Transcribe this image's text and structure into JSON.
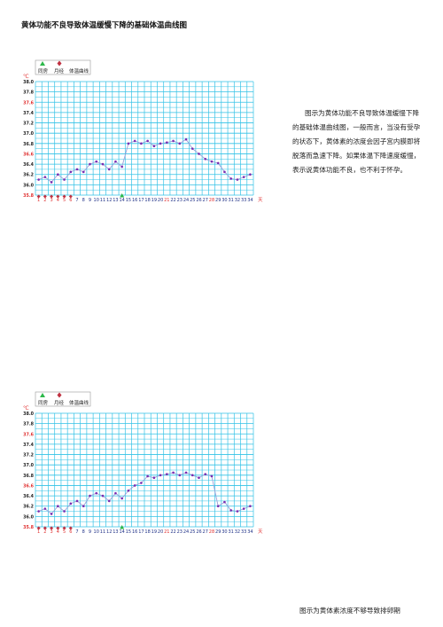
{
  "title": "黄体功能不良导致体温缓慢下降的基础体温曲线图",
  "description": "图示为黄体功能不良导致体温缓慢下降的基础体温曲线图，一般而言，当没有受孕的状态下，黄体素的浓度会因子宫内膜即将脱落而急速下降。如果体温下降速度缓慢，表示说黄体功能不良，也不利于怀孕。",
  "caption": "图示为黄体素浓度不够导致排卵期",
  "colors": {
    "grid": "#33c2e6",
    "line": "#9a9fd9",
    "point": "#7a2bb0",
    "high_temp_label": "#e03030",
    "menses_marker": "#c03040",
    "ovulation_marker": "#2db84a",
    "period_day_label": "#e03030"
  },
  "legend": {
    "ovulation_label": "同房",
    "menses_label": "月经",
    "curve_label": "体温曲线",
    "ovulation_icon": "green-triangle-icon",
    "menses_icon": "red-diamond-icon"
  },
  "chart_data": [
    {
      "type": "line",
      "title": "",
      "unit_label": "℃",
      "x_unit_label": "天",
      "xlabel": "",
      "ylabel": "℃",
      "ylim": [
        35.8,
        38.0
      ],
      "grid": true,
      "legend_position": "top-left",
      "x": [
        1,
        2,
        3,
        4,
        5,
        6,
        7,
        8,
        9,
        10,
        11,
        12,
        13,
        14,
        15,
        16,
        17,
        18,
        19,
        20,
        21,
        22,
        23,
        24,
        25,
        26,
        27,
        28,
        29,
        30,
        31,
        32,
        33,
        34
      ],
      "y_ticks": [
        "38.0",
        "37.8",
        "37.6",
        "37.4",
        "37.2",
        "37.0",
        "36.8",
        "36.6",
        "36.4",
        "36.2",
        "36.0",
        "35.8"
      ],
      "series": [
        {
          "values": [
            36.1,
            36.15,
            36.05,
            36.2,
            36.1,
            36.25,
            36.3,
            36.25,
            36.4,
            36.45,
            36.4,
            36.3,
            36.45,
            36.35,
            36.8,
            36.85,
            36.8,
            36.85,
            36.75,
            36.8,
            36.82,
            36.85,
            36.8,
            36.88,
            36.7,
            36.6,
            36.5,
            36.45,
            36.42,
            36.25,
            36.12,
            36.1,
            36.15,
            36.2
          ]
        }
      ],
      "menses_days": [
        1,
        2,
        3,
        4,
        5,
        6
      ],
      "ovulation_days": [
        14
      ],
      "highlight_days": [
        28
      ]
    },
    {
      "type": "line",
      "title": "",
      "unit_label": "℃",
      "x_unit_label": "天",
      "xlabel": "",
      "ylabel": "℃",
      "ylim": [
        35.8,
        38.0
      ],
      "grid": true,
      "legend_position": "top-left",
      "x": [
        1,
        2,
        3,
        4,
        5,
        6,
        7,
        8,
        9,
        10,
        11,
        12,
        13,
        14,
        15,
        16,
        17,
        18,
        19,
        20,
        21,
        22,
        23,
        24,
        25,
        26,
        27,
        28,
        29,
        30,
        31,
        32,
        33,
        34
      ],
      "y_ticks": [
        "38.0",
        "37.8",
        "37.6",
        "37.4",
        "37.2",
        "37.0",
        "36.8",
        "36.6",
        "36.4",
        "36.2",
        "36.0",
        "35.8"
      ],
      "series": [
        {
          "values": [
            36.1,
            36.15,
            36.05,
            36.2,
            36.1,
            36.25,
            36.3,
            36.2,
            36.4,
            36.45,
            36.4,
            36.3,
            36.45,
            36.35,
            36.5,
            36.6,
            36.65,
            36.78,
            36.75,
            36.8,
            36.82,
            36.85,
            36.8,
            36.85,
            36.8,
            36.75,
            36.82,
            36.78,
            36.2,
            36.28,
            36.12,
            36.1,
            36.15,
            36.2
          ]
        }
      ],
      "menses_days": [
        1,
        2,
        3,
        4,
        5,
        6
      ],
      "ovulation_days": [
        14
      ],
      "highlight_days": [
        28
      ]
    }
  ]
}
